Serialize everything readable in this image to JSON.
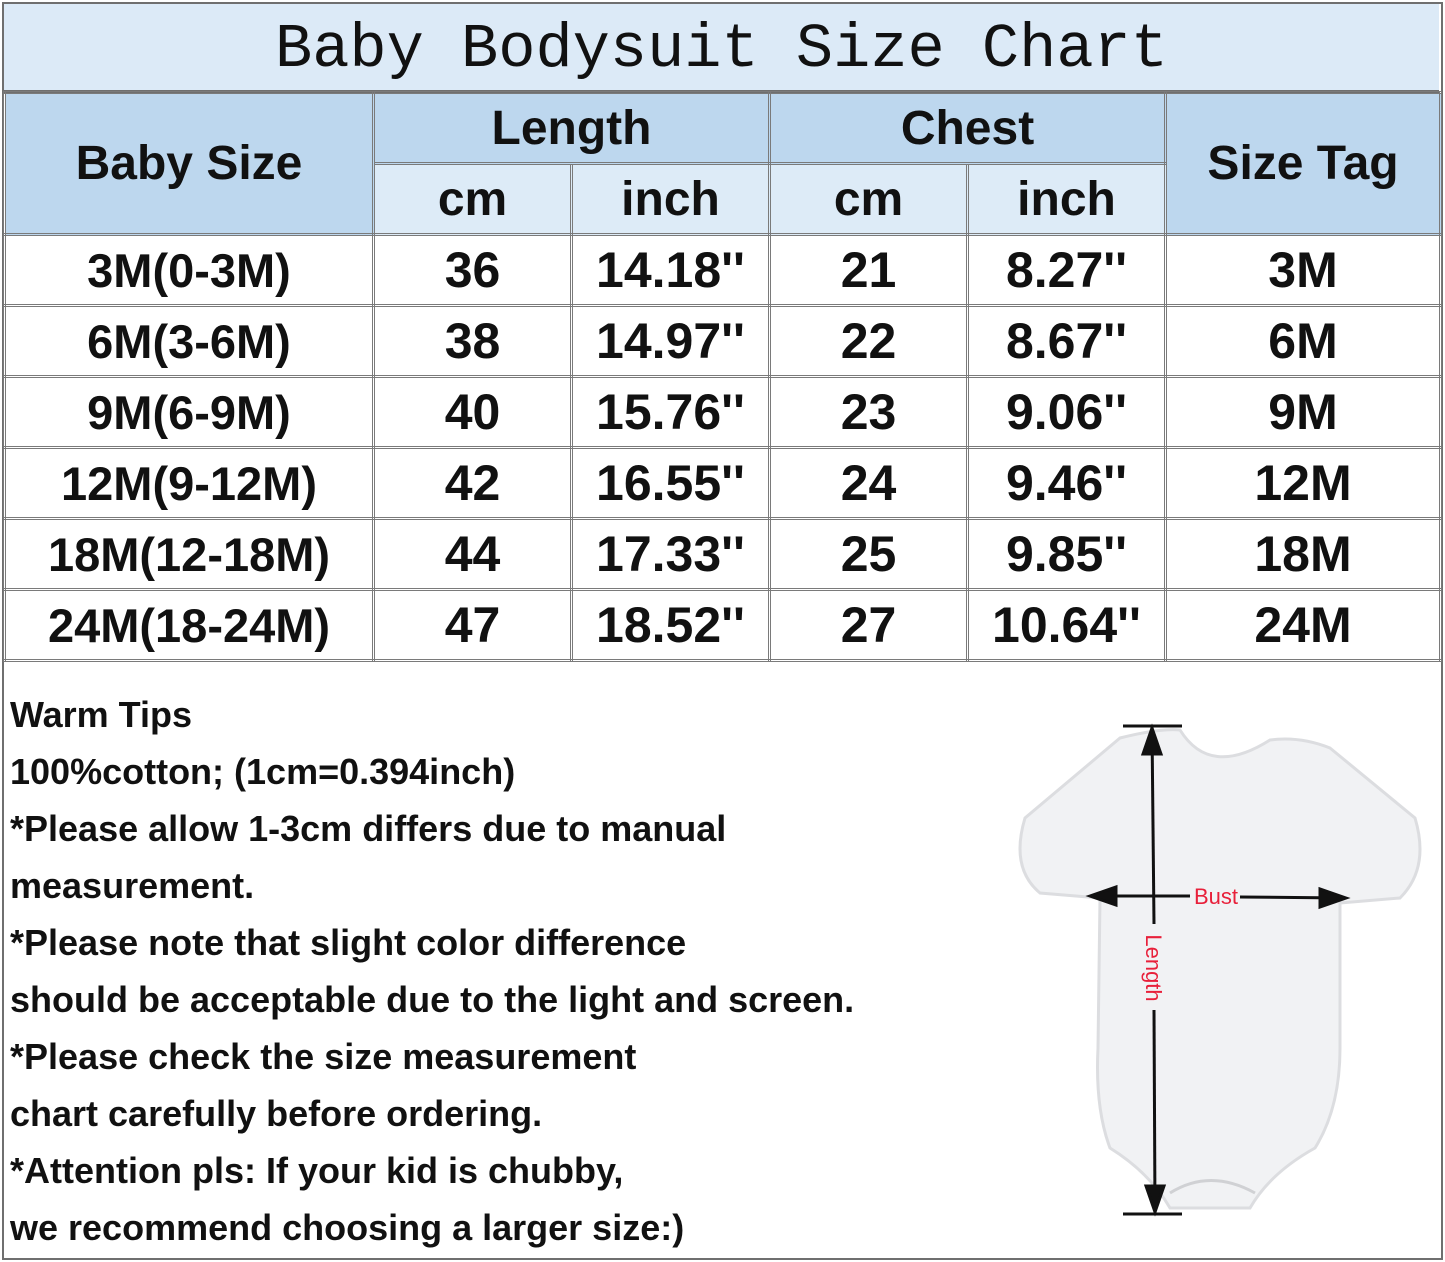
{
  "title": "Baby Bodysuit Size Chart",
  "header": {
    "baby_size": "Baby Size",
    "length": "Length",
    "chest": "Chest",
    "size_tag": "Size Tag",
    "cm": "cm",
    "inch": "inch"
  },
  "rows": [
    {
      "size": "3M(0-3M)",
      "length_cm": "36",
      "length_inch": "14.18''",
      "chest_cm": "21",
      "chest_inch": "8.27''",
      "tag": "3M"
    },
    {
      "size": "6M(3-6M)",
      "length_cm": "38",
      "length_inch": "14.97''",
      "chest_cm": "22",
      "chest_inch": "8.67''",
      "tag": "6M"
    },
    {
      "size": "9M(6-9M)",
      "length_cm": "40",
      "length_inch": "15.76''",
      "chest_cm": "23",
      "chest_inch": "9.06''",
      "tag": "9M"
    },
    {
      "size": "12M(9-12M)",
      "length_cm": "42",
      "length_inch": "16.55''",
      "chest_cm": "24",
      "chest_inch": "9.46''",
      "tag": "12M"
    },
    {
      "size": "18M(12-18M)",
      "length_cm": "44",
      "length_inch": "17.33''",
      "chest_cm": "25",
      "chest_inch": "9.85''",
      "tag": "18M"
    },
    {
      "size": "24M(18-24M)",
      "length_cm": "47",
      "length_inch": "18.52''",
      "chest_cm": "27",
      "chest_inch": "10.64''",
      "tag": "24M"
    }
  ],
  "tips": [
    "Warm Tips",
    "100%cotton; (1cm=0.394inch)",
    "*Please allow 1-3cm differs due to manual",
    "measurement.",
    "*Please note that slight color difference",
    "should be acceptable due to the light and screen.",
    "*Please check the size measurement",
    "chart carefully before ordering.",
    "*Attention pls: If your kid is chubby,",
    "we recommend choosing a larger size:)"
  ],
  "diagram": {
    "bust_label": "Bust",
    "length_label": "Length",
    "label_color": "#e8203a"
  },
  "colors": {
    "title_bg": "#dceaf7",
    "header_bg": "#bdd7ee",
    "subheader_bg": "#ddebf7",
    "border": "#7a7a7a"
  }
}
